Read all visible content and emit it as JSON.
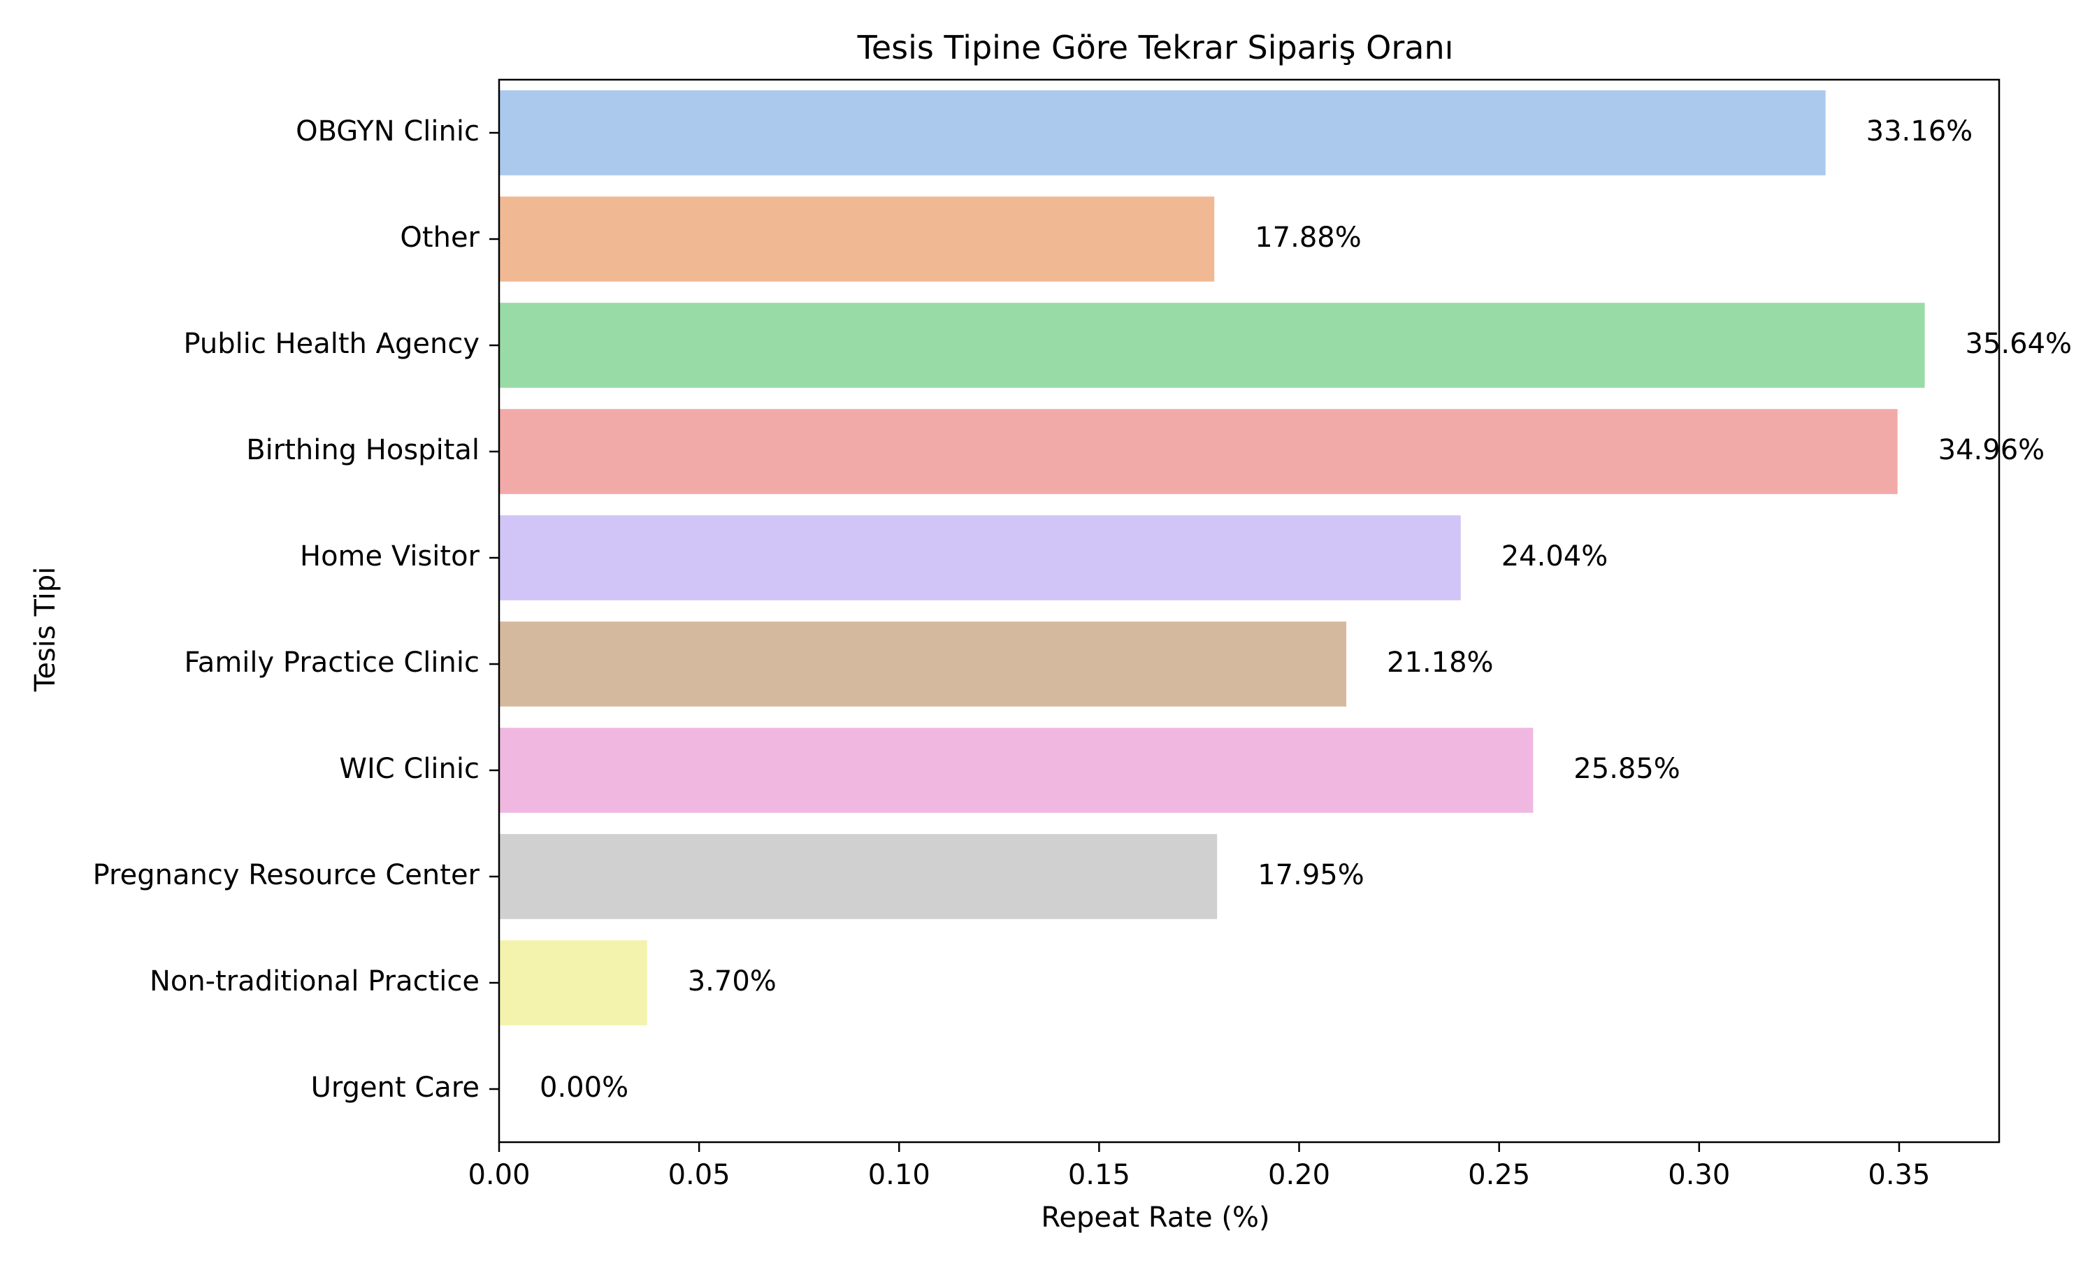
{
  "chart_data": {
    "type": "bar",
    "orientation": "horizontal",
    "title": "Tesis Tipine Göre Tekrar Sipariş Oranı",
    "xlabel": "Repeat Rate (%)",
    "ylabel": "Tesis Tipi",
    "categories": [
      "OBGYN Clinic",
      "Other",
      "Public Health Agency",
      "Birthing Hospital",
      "Home Visitor",
      "Family Practice Clinic",
      "WIC Clinic",
      "Pregnancy Resource Center",
      "Non-traditional Practice",
      "Urgent Care"
    ],
    "values": [
      0.3316,
      0.1788,
      0.3564,
      0.3496,
      0.2404,
      0.2118,
      0.2585,
      0.1795,
      0.037,
      0.0
    ],
    "data_labels": [
      "33.16%",
      "17.88%",
      "35.64%",
      "34.96%",
      "24.04%",
      "21.18%",
      "25.85%",
      "17.95%",
      "3.70%",
      "0.00%"
    ],
    "colors": [
      "#abc9ec",
      "#f0b893",
      "#98dba7",
      "#f2aaa8",
      "#d1c4f6",
      "#d5b99f",
      "#f0b8e0",
      "#d0d0d0",
      "#f3f3ad",
      "#b9e8f3"
    ],
    "xlim": [
      0,
      0.375
    ],
    "xticks": [
      0.0,
      0.05,
      0.1,
      0.15,
      0.2,
      0.25,
      0.3,
      0.35
    ],
    "xtick_labels": [
      "0.00",
      "0.05",
      "0.10",
      "0.15",
      "0.20",
      "0.25",
      "0.30",
      "0.35"
    ],
    "grid": false,
    "legend": "none"
  }
}
